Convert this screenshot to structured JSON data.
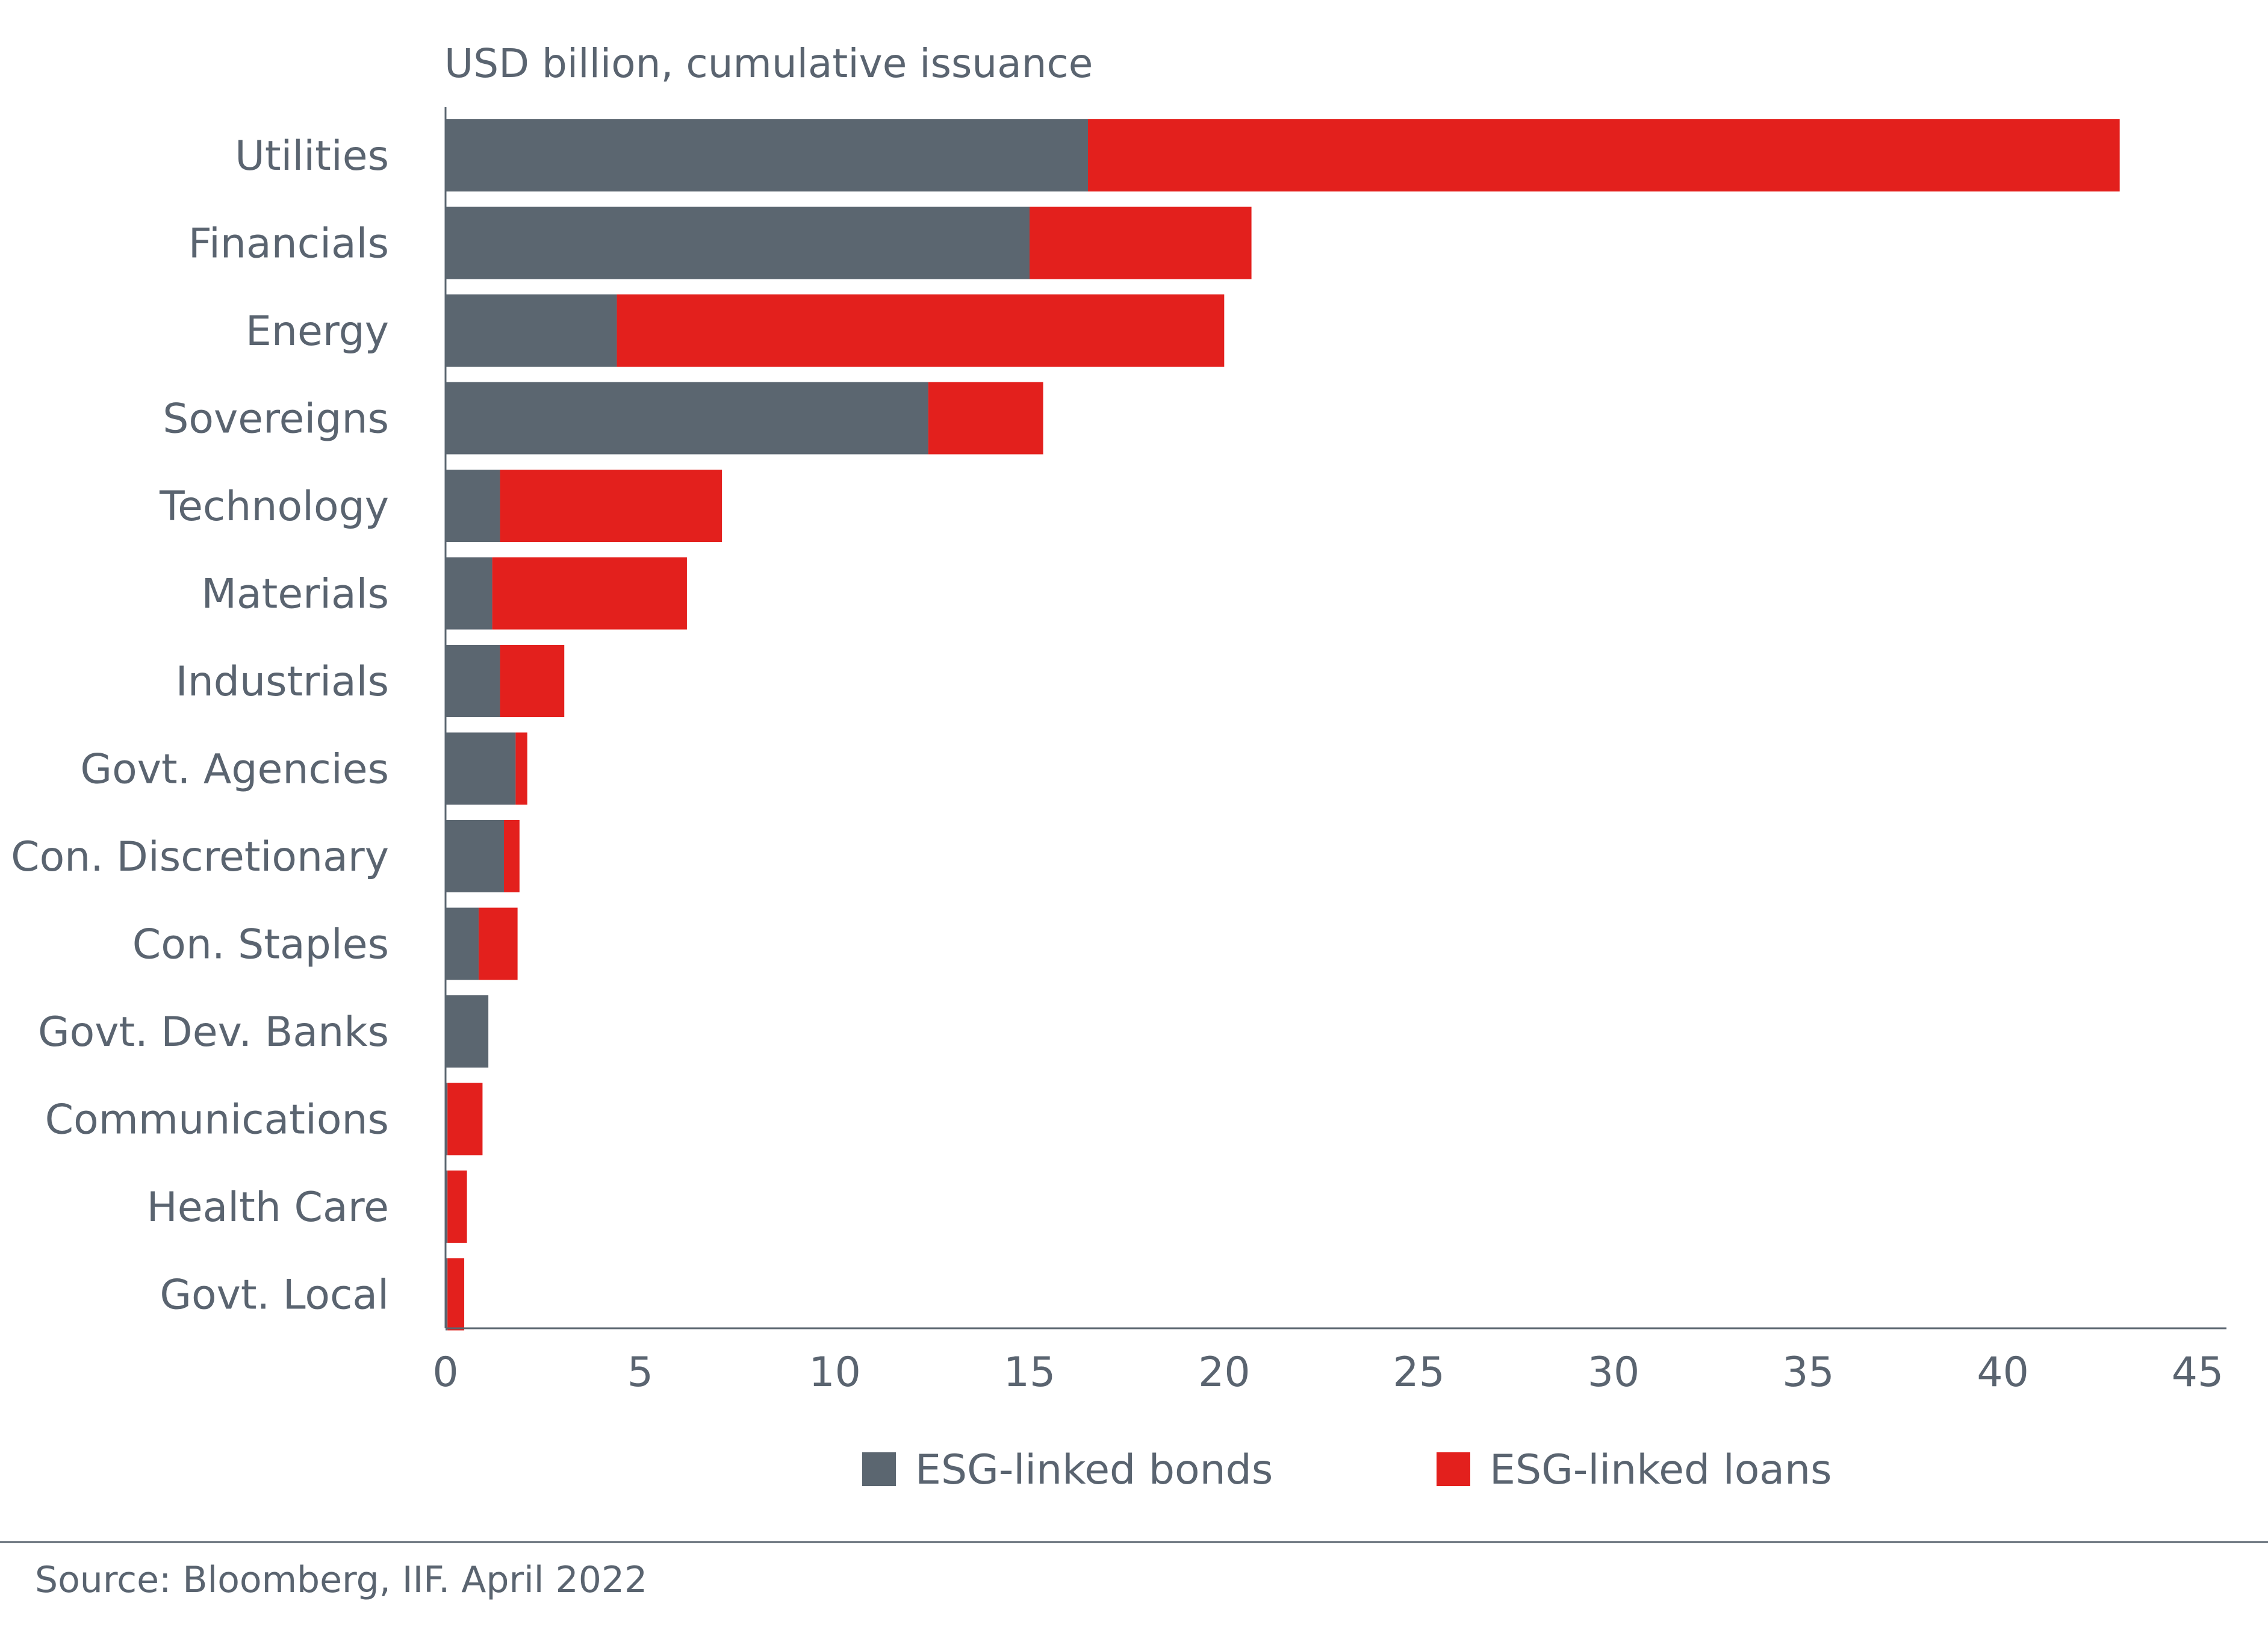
{
  "chart_data": {
    "type": "bar",
    "orientation": "horizontal",
    "stacked": true,
    "subtitle": "USD billion, cumulative issuance",
    "categories": [
      "Utilities",
      "Financials",
      "Energy",
      "Sovereigns",
      "Technology",
      "Materials",
      "Industrials",
      "Govt. Agencies",
      "Con. Discretionary",
      "Con. Staples",
      "Govt. Dev. Banks",
      "Communications",
      "Health Care",
      "Govt. Local"
    ],
    "series": [
      {
        "name": "ESG-linked bonds",
        "color": "#5b6670",
        "values": [
          16.5,
          15.0,
          4.4,
          12.4,
          1.4,
          1.2,
          1.4,
          1.8,
          1.5,
          0.85,
          1.1,
          0.05,
          0.05,
          0.05
        ]
      },
      {
        "name": "ESG-linked loans",
        "color": "#e3201d",
        "values": [
          26.5,
          5.7,
          15.6,
          2.95,
          5.7,
          5.0,
          1.65,
          0.3,
          0.4,
          1.0,
          0.0,
          0.9,
          0.5,
          0.43
        ]
      }
    ],
    "xlim": [
      0,
      45
    ],
    "xticks": [
      "0",
      "5",
      "10",
      "15",
      "20",
      "25",
      "30",
      "35",
      "40",
      "45"
    ],
    "xlabel": "",
    "ylabel": "",
    "grid": false,
    "legend_position": "bottom"
  },
  "source": "Source: Bloomberg, IIF. April 2022"
}
